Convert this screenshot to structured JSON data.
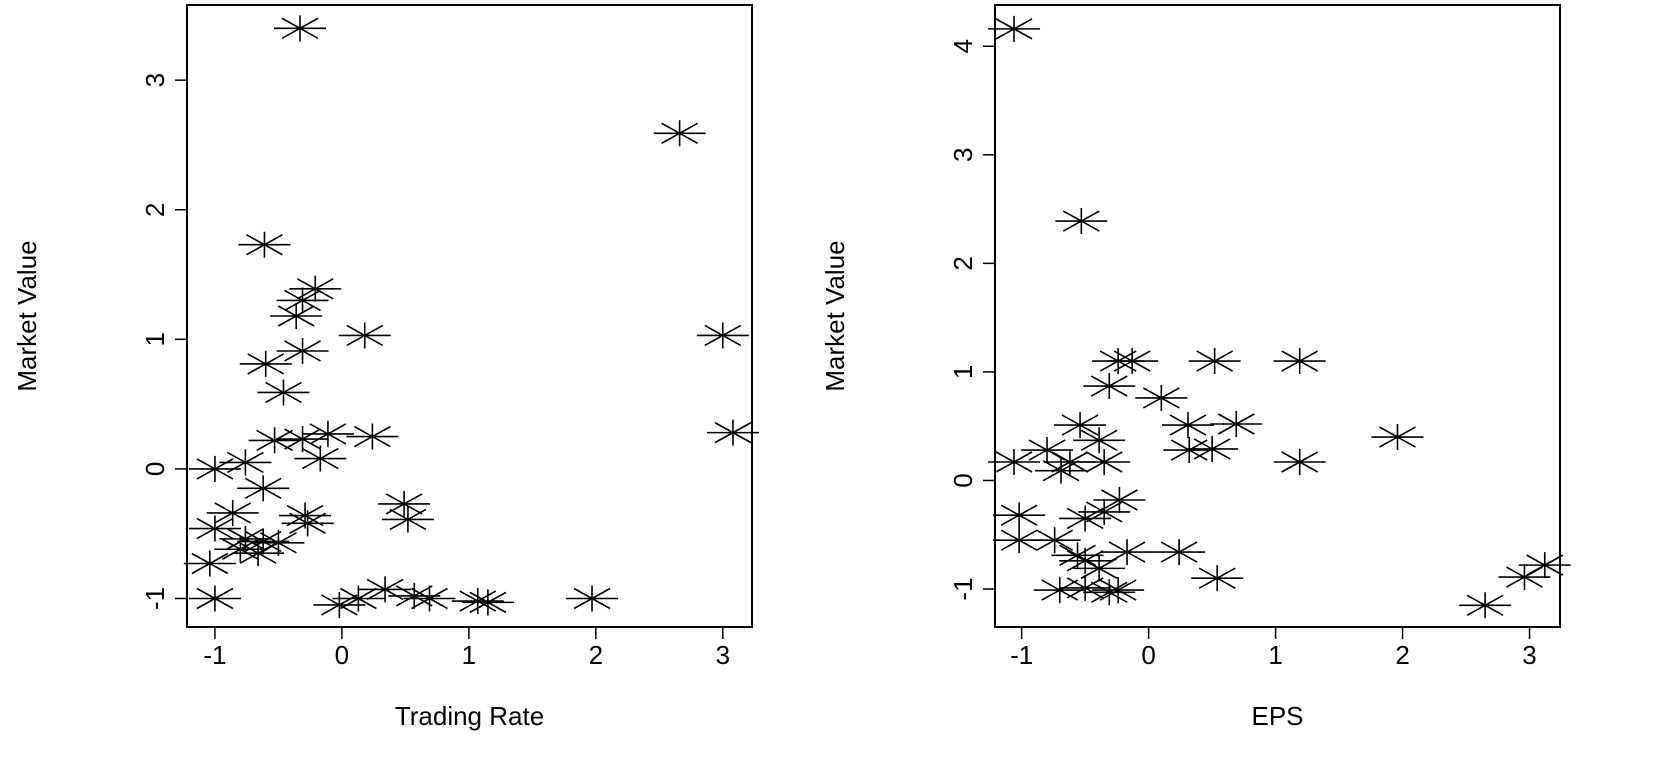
{
  "chart_data": [
    {
      "type": "scatter",
      "xlabel": "Trading Rate",
      "ylabel": "Market Value",
      "color": "#000000",
      "xlim": [
        -1.22,
        3.23
      ],
      "ylim": [
        -1.22,
        3.58
      ],
      "xticks": [
        -1,
        0,
        1,
        2,
        3
      ],
      "yticks": [
        -1,
        0,
        1,
        2,
        3
      ],
      "x": [
        -0.33,
        2.66,
        -0.61,
        -0.21,
        -0.31,
        -0.36,
        0.18,
        3.0,
        -0.31,
        -0.6,
        -0.46,
        3.08,
        -0.31,
        -0.11,
        0.24,
        -0.53,
        -0.17,
        -1.0,
        -0.76,
        -0.62,
        0.49,
        0.52,
        -0.86,
        -0.29,
        -0.27,
        -1.0,
        -0.76,
        -0.62,
        -0.5,
        -0.66,
        -0.8,
        -1.04,
        -1.0,
        -0.02,
        0.13,
        0.34,
        0.57,
        0.69,
        1.07,
        1.15,
        1.97
      ],
      "values": [
        3.4,
        2.59,
        1.73,
        1.39,
        1.3,
        1.18,
        1.03,
        1.03,
        0.91,
        0.81,
        0.59,
        0.28,
        0.23,
        0.27,
        0.25,
        0.22,
        0.08,
        0.0,
        0.05,
        -0.15,
        -0.27,
        -0.39,
        -0.34,
        -0.36,
        -0.42,
        -0.46,
        -0.54,
        -0.56,
        -0.57,
        -0.65,
        -0.62,
        -0.73,
        -1.0,
        -1.05,
        -1.0,
        -0.93,
        -0.98,
        -1.0,
        -1.02,
        -1.03,
        -1.0
      ]
    },
    {
      "type": "scatter",
      "xlabel": "EPS",
      "ylabel": "Market Value",
      "color": "#000000",
      "xlim": [
        -1.21,
        3.24
      ],
      "ylim": [
        -1.35,
        4.38
      ],
      "xticks": [
        -1,
        0,
        1,
        2,
        3
      ],
      "yticks": [
        -1,
        0,
        1,
        2,
        3,
        4
      ],
      "x": [
        -1.06,
        -0.53,
        -0.24,
        -0.13,
        0.52,
        1.19,
        -0.31,
        0.1,
        -0.54,
        -0.39,
        0.69,
        0.31,
        1.96,
        -0.8,
        0.32,
        0.5,
        -1.06,
        -0.35,
        -0.62,
        1.19,
        -0.69,
        -1.02,
        -0.23,
        -0.35,
        -0.5,
        -1.02,
        -0.74,
        -0.56,
        -0.17,
        0.24,
        -0.39,
        0.54,
        -0.7,
        -0.5,
        -0.31,
        -0.24,
        3.12,
        2.96,
        2.65,
        -0.5
      ],
      "values": [
        4.16,
        2.39,
        1.1,
        1.1,
        1.1,
        1.1,
        0.87,
        0.76,
        0.51,
        0.37,
        0.52,
        0.51,
        0.4,
        0.28,
        0.28,
        0.29,
        0.17,
        0.17,
        0.17,
        0.17,
        0.09,
        -0.32,
        -0.18,
        -0.29,
        -0.35,
        -0.55,
        -0.55,
        -0.69,
        -0.66,
        -0.66,
        -0.81,
        -0.9,
        -1.01,
        -0.99,
        -1.03,
        -1.01,
        -0.78,
        -0.89,
        -1.15,
        -0.74
      ]
    }
  ]
}
